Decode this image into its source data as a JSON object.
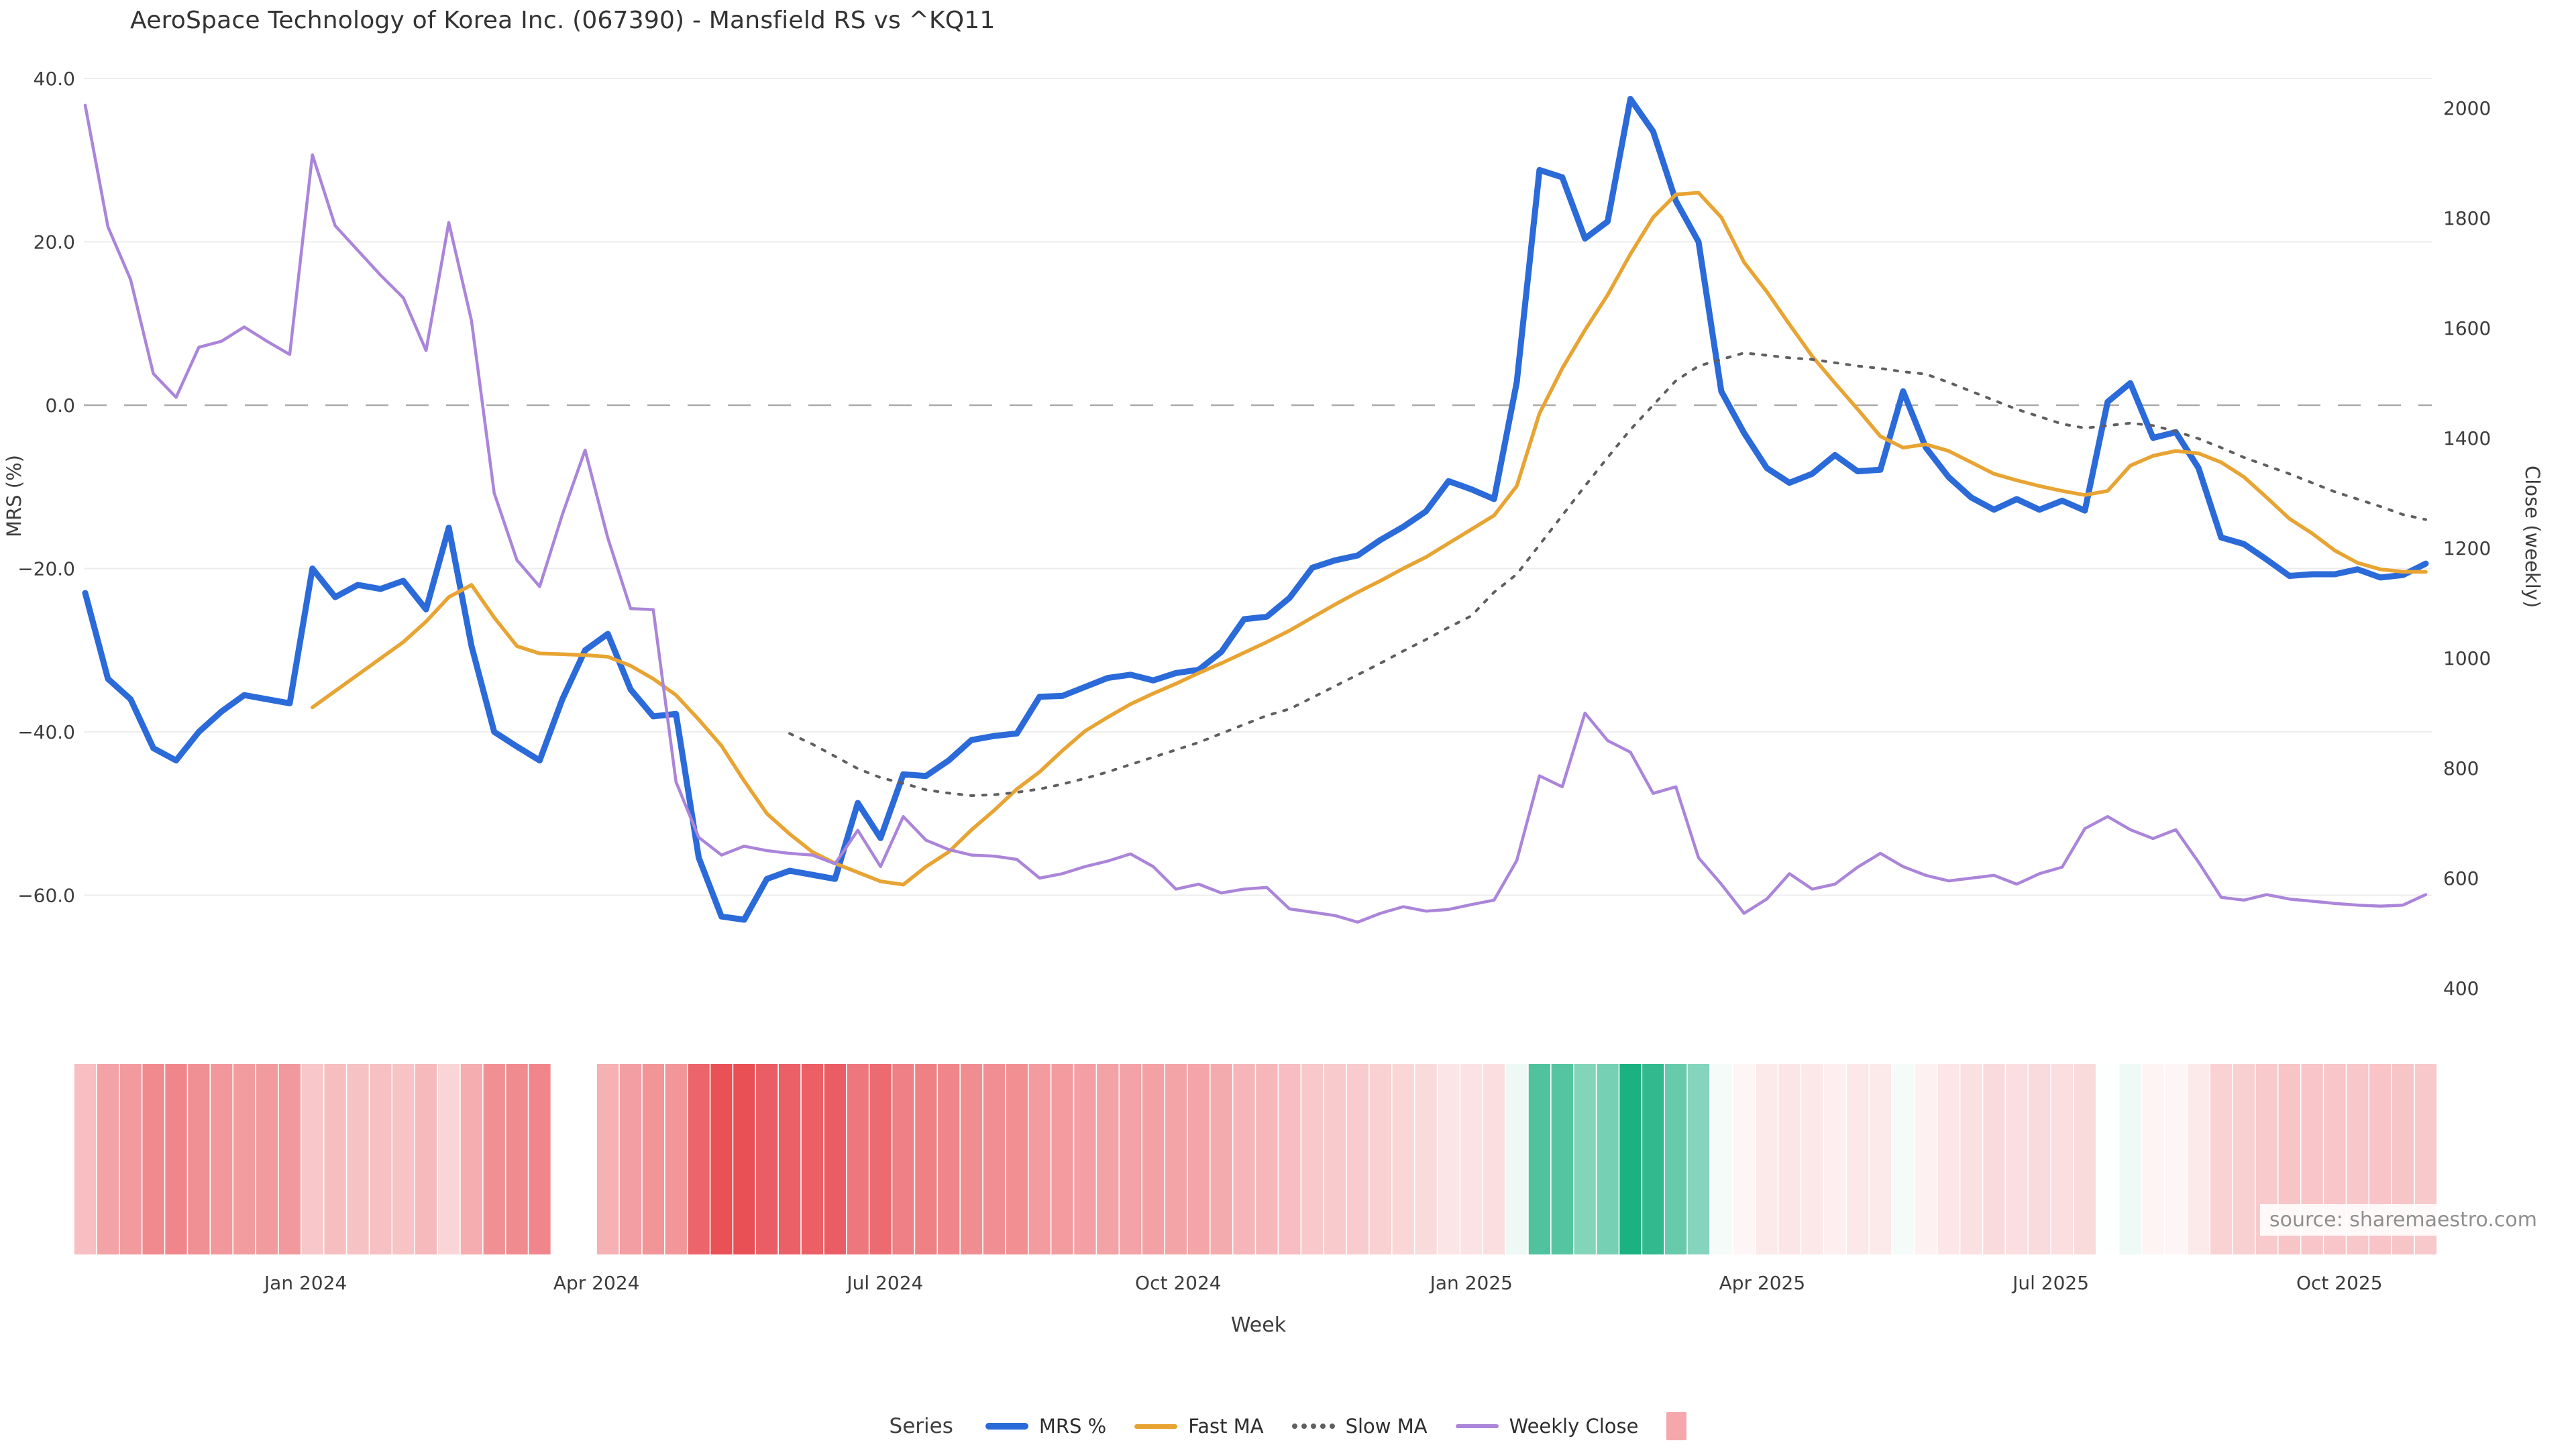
{
  "title": "AeroSpace Technology of Korea Inc. (067390) - Mansfield RS vs ^KQ11",
  "source": "source: sharemaestro.com",
  "legend": {
    "title": "Series",
    "heat_swatch_color": "#f5a8ab"
  },
  "chart_data": {
    "type": "line",
    "title": "AeroSpace Technology of Korea Inc. (067390) - Mansfield RS vs ^KQ11",
    "x_axis": {
      "label": "Week",
      "ticks": [
        {
          "label": "Jan 2024",
          "week": 9.7
        },
        {
          "label": "Apr 2024",
          "week": 22.5
        },
        {
          "label": "Jul 2024",
          "week": 35.2
        },
        {
          "label": "Oct 2024",
          "week": 48.1
        },
        {
          "label": "Jan 2025",
          "week": 61.0
        },
        {
          "label": "Apr 2025",
          "week": 73.8
        },
        {
          "label": "Jul 2025",
          "week": 86.5
        },
        {
          "label": "Oct 2025",
          "week": 99.2
        }
      ]
    },
    "y_left": {
      "label": "MRS (%)",
      "ticks": [
        40,
        20,
        0,
        -20,
        -40,
        -60
      ],
      "range": [
        -66,
        42
      ]
    },
    "y_right": {
      "label": "Close (weekly)",
      "ticks": [
        2000,
        1800,
        1600,
        1400,
        1200,
        1000,
        800,
        600,
        400
      ],
      "range": [
        380,
        2040
      ]
    },
    "zero_line": {
      "value": 0,
      "color": "#a9a9a9"
    },
    "grid_color": "#ececec",
    "series": [
      {
        "name": "MRS %",
        "axis": "left",
        "color": "#2b6ad9",
        "style": "solid",
        "width": 9,
        "values": [
          -23,
          -33.5,
          -36,
          -42,
          -43.5,
          -40,
          -37.5,
          -35.5,
          -36,
          -36.5,
          -20,
          -23.5,
          -22,
          -22.5,
          -21.5,
          -25,
          -15,
          -29.5,
          -40,
          -41.8,
          -43.5,
          -36,
          -30,
          -28,
          -34.8,
          -38.1,
          -37.8,
          -55.4,
          -62.6,
          -63,
          -58,
          -57,
          -57.5,
          -58,
          -48.7,
          -53,
          -45.2,
          -45.4,
          -43.5,
          -41,
          -40.5,
          -40.2,
          -35.7,
          -35.6,
          -34.5,
          -33.4,
          -33,
          -33.7,
          -32.8,
          -32.4,
          -30.2,
          -26.2,
          -25.9,
          -23.6,
          -19.9,
          -19,
          -18.4,
          -16.5,
          -14.9,
          -13,
          -9.3,
          -10.3,
          -11.5,
          2.8,
          28.8,
          27.9,
          20.4,
          22.5,
          37.5,
          33.5,
          25,
          20,
          1.7,
          -3.4,
          -7.7,
          -9.5,
          -8.4,
          -6.1,
          -8.1,
          -7.9,
          1.7,
          -5.2,
          -8.8,
          -11.3,
          -12.8,
          -11.5,
          -12.8,
          -11.7,
          -12.9,
          0.4,
          2.7,
          -4,
          -3.3,
          -7.7,
          -16.2,
          -17,
          -18.9,
          -20.9,
          -20.7,
          -20.7,
          -20.1,
          -21.1,
          -20.8,
          -19.4
        ]
      },
      {
        "name": "Fast MA",
        "axis": "left",
        "color": "#e8a433",
        "style": "solid",
        "width": 5.5,
        "values": [
          null,
          null,
          null,
          null,
          null,
          null,
          null,
          null,
          null,
          null,
          -37,
          -35,
          -33,
          -31,
          -29,
          -26.5,
          -23.5,
          -22,
          -26,
          -29.5,
          -30.4,
          -30.5,
          -30.6,
          -30.8,
          -31.9,
          -33.5,
          -35.5,
          -38.5,
          -41.7,
          -46,
          -50,
          -52.5,
          -54.7,
          -56.1,
          -57.2,
          -58.3,
          -58.7,
          -56.5,
          -54.7,
          -52,
          -49.6,
          -47,
          -44.9,
          -42.3,
          -39.9,
          -38.2,
          -36.6,
          -35.3,
          -34.1,
          -32.8,
          -31.6,
          -30.3,
          -29,
          -27.6,
          -26,
          -24.4,
          -22.9,
          -21.5,
          -20,
          -18.6,
          -16.9,
          -15.2,
          -13.5,
          -9.9,
          -1,
          4.5,
          9.2,
          13.5,
          18.5,
          23,
          25.8,
          26,
          23,
          17.5,
          13.9,
          9.9,
          6,
          2.7,
          -0.5,
          -3.8,
          -5.2,
          -4.8,
          -5.6,
          -7,
          -8.4,
          -9.2,
          -9.9,
          -10.5,
          -11,
          -10.5,
          -7.4,
          -6.2,
          -5.6,
          -5.9,
          -7,
          -8.8,
          -11.3,
          -13.9,
          -15.7,
          -17.8,
          -19.3,
          -20.1,
          -20.4,
          -20.4
        ]
      },
      {
        "name": "Slow MA",
        "axis": "left",
        "color": "#5f5f5f",
        "style": "dotted",
        "width": 4,
        "values": [
          null,
          null,
          null,
          null,
          null,
          null,
          null,
          null,
          null,
          null,
          null,
          null,
          null,
          null,
          null,
          null,
          null,
          null,
          null,
          null,
          null,
          null,
          null,
          null,
          null,
          null,
          null,
          null,
          null,
          null,
          null,
          -40.2,
          -41.5,
          -43,
          -44.5,
          -45.6,
          -46.3,
          -47.1,
          -47.5,
          -47.8,
          -47.7,
          -47.4,
          -47,
          -46.4,
          -45.7,
          -44.9,
          -44,
          -43.1,
          -42.2,
          -41.3,
          -40.2,
          -39.1,
          -38,
          -37.2,
          -35.8,
          -34.4,
          -33,
          -31.6,
          -30.1,
          -28.7,
          -27.2,
          -25.8,
          -22.9,
          -20.7,
          -17.1,
          -13.5,
          -9.9,
          -6.4,
          -3,
          0,
          3,
          4.8,
          5.6,
          6.4,
          6.1,
          5.8,
          5.6,
          5.2,
          4.8,
          4.5,
          4.1,
          3.8,
          2.8,
          1.7,
          0.6,
          -0.5,
          -1.4,
          -2.3,
          -2.8,
          -2.5,
          -2.2,
          -2.5,
          -3.2,
          -4.1,
          -5.2,
          -6.4,
          -7.4,
          -8.4,
          -9.5,
          -10.6,
          -11.5,
          -12.4,
          -13.4,
          -14
        ]
      },
      {
        "name": "Weekly Close",
        "axis": "right",
        "color": "#aa85d9",
        "style": "solid",
        "width": 4.5,
        "values": [
          2005,
          1784,
          1688,
          1517,
          1474,
          1565,
          1576,
          1602,
          1576,
          1552,
          1915,
          1786,
          1741,
          1696,
          1655,
          1559,
          1792,
          1613,
          1300,
          1178,
          1130,
          1261,
          1378,
          1218,
          1090,
          1088,
          775,
          674,
          642,
          658,
          650,
          645,
          642,
          626,
          687,
          621,
          712,
          669,
          652,
          642,
          640,
          634,
          600,
          608,
          621,
          631,
          644,
          621,
          580,
          589,
          573,
          580,
          583,
          544,
          538,
          532,
          520,
          536,
          548,
          540,
          543,
          552,
          560,
          632,
          786,
          766,
          900,
          850,
          829,
          754,
          766,
          637,
          589,
          536,
          562,
          608,
          580,
          589,
          620,
          645,
          621,
          605,
          595,
          600,
          605,
          589,
          608,
          620,
          690,
          712,
          688,
          672,
          688,
          629,
          565,
          560,
          570,
          562,
          558,
          554,
          551,
          549,
          551,
          570
        ]
      }
    ],
    "heatmap": {
      "source_series": "MRS %",
      "skip_weeks": [
        21,
        22
      ],
      "negative_base": "#e84a51",
      "positive_base": "#18b07f",
      "red_max": 65,
      "green_max": 38
    }
  }
}
